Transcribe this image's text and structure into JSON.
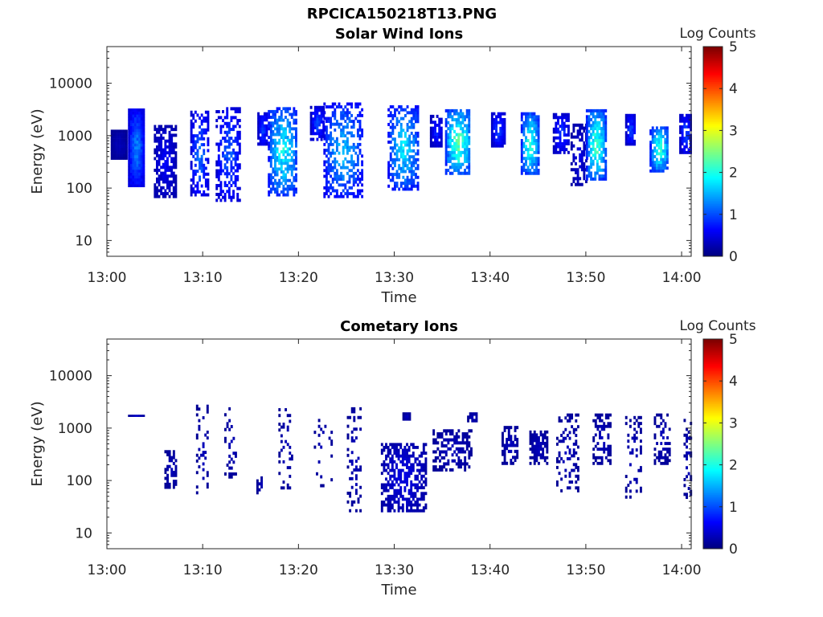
{
  "figure_title": "RPCICA150218T13.PNG",
  "colorbar": {
    "label": "Log Counts",
    "range": [
      0,
      5
    ],
    "ticks": [
      "0",
      "1",
      "2",
      "3",
      "4",
      "5"
    ],
    "colormap": "jet"
  },
  "chart_data": [
    {
      "type": "heatmap",
      "title": "Solar Wind Ions",
      "xlabel": "Time",
      "ylabel": "Energy (eV)",
      "xlim": [
        "13:00",
        "14:01"
      ],
      "x_ticks": [
        "13:00",
        "13:10",
        "13:20",
        "13:30",
        "13:40",
        "13:50",
        "14:00"
      ],
      "yscale": "log",
      "ylim": [
        5,
        50000
      ],
      "y_ticks": [
        "10",
        "100",
        "1000",
        "10000"
      ],
      "blocks": [
        {
          "t": 13.02,
          "dt": 1.6,
          "e_lo": 350,
          "e_hi": 1300,
          "peak": 0.3,
          "fill": 1.0
        },
        {
          "t": 13.05,
          "dt": 1.6,
          "e_lo": 105,
          "e_hi": 3300,
          "peak": 1.3,
          "fill": 1.0
        },
        {
          "t": 13.1,
          "dt": 2.2,
          "e_lo": 65,
          "e_hi": 1600,
          "peak": 0.6,
          "fill": 0.7
        },
        {
          "t": 13.16,
          "dt": 1.8,
          "e_lo": 70,
          "e_hi": 3000,
          "peak": 1.2,
          "fill": 0.55
        },
        {
          "t": 13.21,
          "dt": 2.5,
          "e_lo": 55,
          "e_hi": 3500,
          "peak": 1.1,
          "fill": 0.5
        },
        {
          "t": 13.27,
          "dt": 1.0,
          "e_lo": 650,
          "e_hi": 2800,
          "peak": 1.0,
          "fill": 0.85
        },
        {
          "t": 13.305,
          "dt": 3.0,
          "e_lo": 70,
          "e_hi": 3500,
          "peak": 2.0,
          "fill": 0.6
        },
        {
          "t": 13.365,
          "dt": 1.4,
          "e_lo": 800,
          "e_hi": 3700,
          "peak": 1.0,
          "fill": 0.8
        },
        {
          "t": 13.41,
          "dt": 4.0,
          "e_lo": 65,
          "e_hi": 4300,
          "peak": 1.6,
          "fill": 0.55
        },
        {
          "t": 13.515,
          "dt": 3.2,
          "e_lo": 90,
          "e_hi": 3800,
          "peak": 1.8,
          "fill": 0.55
        },
        {
          "t": 13.572,
          "dt": 1.2,
          "e_lo": 600,
          "e_hi": 2500,
          "peak": 0.8,
          "fill": 0.8
        },
        {
          "t": 13.61,
          "dt": 2.6,
          "e_lo": 180,
          "e_hi": 3200,
          "peak": 2.4,
          "fill": 0.75
        },
        {
          "t": 13.68,
          "dt": 1.4,
          "e_lo": 600,
          "e_hi": 2800,
          "peak": 1.0,
          "fill": 0.8
        },
        {
          "t": 13.735,
          "dt": 1.8,
          "e_lo": 180,
          "e_hi": 2800,
          "peak": 2.2,
          "fill": 0.8
        },
        {
          "t": 13.79,
          "dt": 1.7,
          "e_lo": 450,
          "e_hi": 2700,
          "peak": 0.9,
          "fill": 0.7
        },
        {
          "t": 13.82,
          "dt": 1.6,
          "e_lo": 110,
          "e_hi": 1700,
          "peak": 0.5,
          "fill": 0.5
        },
        {
          "t": 13.85,
          "dt": 2.0,
          "e_lo": 140,
          "e_hi": 3200,
          "peak": 2.3,
          "fill": 0.75
        },
        {
          "t": 13.91,
          "dt": 1.0,
          "e_lo": 650,
          "e_hi": 2600,
          "peak": 1.0,
          "fill": 0.85
        },
        {
          "t": 13.96,
          "dt": 1.9,
          "e_lo": 200,
          "e_hi": 1500,
          "peak": 2.2,
          "fill": 0.75
        },
        {
          "t": 14.005,
          "dt": 1.1,
          "e_lo": 450,
          "e_hi": 2600,
          "peak": 1.0,
          "fill": 0.8
        }
      ]
    },
    {
      "type": "heatmap",
      "title": "Cometary Ions",
      "xlabel": "Time",
      "ylabel": "Energy (eV)",
      "xlim": [
        "13:00",
        "14:01"
      ],
      "x_ticks": [
        "13:00",
        "13:10",
        "13:20",
        "13:30",
        "13:40",
        "13:50",
        "14:00"
      ],
      "yscale": "log",
      "ylim": [
        5,
        50000
      ],
      "y_ticks": [
        "10",
        "100",
        "1000",
        "10000"
      ],
      "blocks": [
        {
          "t": 13.05,
          "dt": 1.6,
          "e_lo": 1650,
          "e_hi": 1800,
          "peak": 0.3,
          "fill": 1.0
        },
        {
          "t": 13.11,
          "dt": 1.2,
          "e_lo": 70,
          "e_hi": 380,
          "peak": 0.3,
          "fill": 0.55
        },
        {
          "t": 13.165,
          "dt": 1.2,
          "e_lo": 55,
          "e_hi": 2800,
          "peak": 0.3,
          "fill": 0.25
        },
        {
          "t": 13.215,
          "dt": 1.3,
          "e_lo": 110,
          "e_hi": 2500,
          "peak": 0.3,
          "fill": 0.22
        },
        {
          "t": 13.265,
          "dt": 0.6,
          "e_lo": 55,
          "e_hi": 120,
          "peak": 0.3,
          "fill": 0.5
        },
        {
          "t": 13.31,
          "dt": 1.4,
          "e_lo": 60,
          "e_hi": 2400,
          "peak": 0.3,
          "fill": 0.2
        },
        {
          "t": 13.375,
          "dt": 1.8,
          "e_lo": 75,
          "e_hi": 1500,
          "peak": 0.3,
          "fill": 0.12
        },
        {
          "t": 13.43,
          "dt": 1.5,
          "e_lo": 25,
          "e_hi": 2500,
          "peak": 0.3,
          "fill": 0.25
        },
        {
          "t": 13.515,
          "dt": 4.6,
          "e_lo": 25,
          "e_hi": 520,
          "peak": 0.5,
          "fill": 0.6
        },
        {
          "t": 13.52,
          "dt": 0.7,
          "e_lo": 1400,
          "e_hi": 2000,
          "peak": 0.3,
          "fill": 0.8
        },
        {
          "t": 13.6,
          "dt": 4.0,
          "e_lo": 150,
          "e_hi": 950,
          "peak": 0.3,
          "fill": 0.5
        },
        {
          "t": 13.635,
          "dt": 1.0,
          "e_lo": 1300,
          "e_hi": 2000,
          "peak": 0.3,
          "fill": 0.8
        },
        {
          "t": 13.7,
          "dt": 1.6,
          "e_lo": 200,
          "e_hi": 1100,
          "peak": 0.3,
          "fill": 0.5
        },
        {
          "t": 13.75,
          "dt": 1.8,
          "e_lo": 200,
          "e_hi": 900,
          "peak": 0.3,
          "fill": 0.6
        },
        {
          "t": 13.8,
          "dt": 2.2,
          "e_lo": 60,
          "e_hi": 1900,
          "peak": 0.3,
          "fill": 0.25
        },
        {
          "t": 13.86,
          "dt": 1.8,
          "e_lo": 200,
          "e_hi": 1900,
          "peak": 0.3,
          "fill": 0.45
        },
        {
          "t": 13.915,
          "dt": 1.6,
          "e_lo": 40,
          "e_hi": 1700,
          "peak": 0.3,
          "fill": 0.22
        },
        {
          "t": 13.965,
          "dt": 1.6,
          "e_lo": 200,
          "e_hi": 1900,
          "peak": 0.3,
          "fill": 0.4
        },
        {
          "t": 14.01,
          "dt": 0.8,
          "e_lo": 45,
          "e_hi": 1500,
          "peak": 0.3,
          "fill": 0.3
        }
      ]
    }
  ]
}
